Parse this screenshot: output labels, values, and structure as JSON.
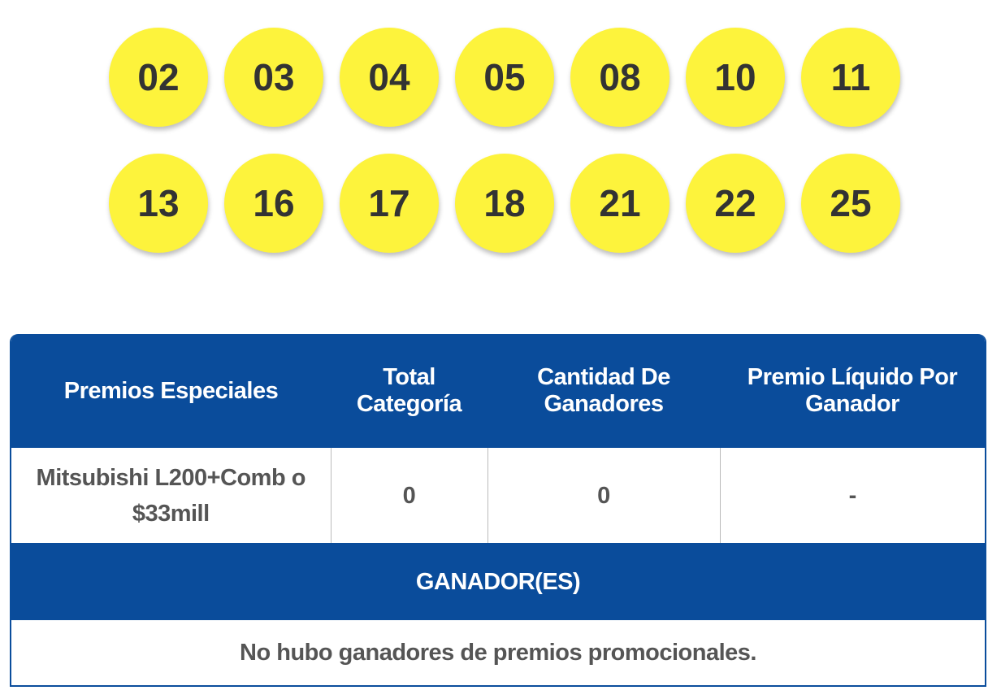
{
  "balls": [
    [
      "02",
      "03",
      "04",
      "05",
      "08",
      "10",
      "11"
    ],
    [
      "13",
      "16",
      "17",
      "18",
      "21",
      "22",
      "25"
    ]
  ],
  "ball_color": "#fdf33c",
  "table": {
    "headers": [
      "Premios Especiales",
      "Total Categoría",
      "Cantidad De Ganadores",
      "Premio Líquido Por Ganador"
    ],
    "row": [
      "Mitsubishi L200+Comb o $33mill",
      "0",
      "0",
      "-"
    ],
    "winners_title": "GANADOR(ES)",
    "winners_message": "No hubo ganadores de premios promocionales.",
    "header_color": "#0a4c9b"
  }
}
